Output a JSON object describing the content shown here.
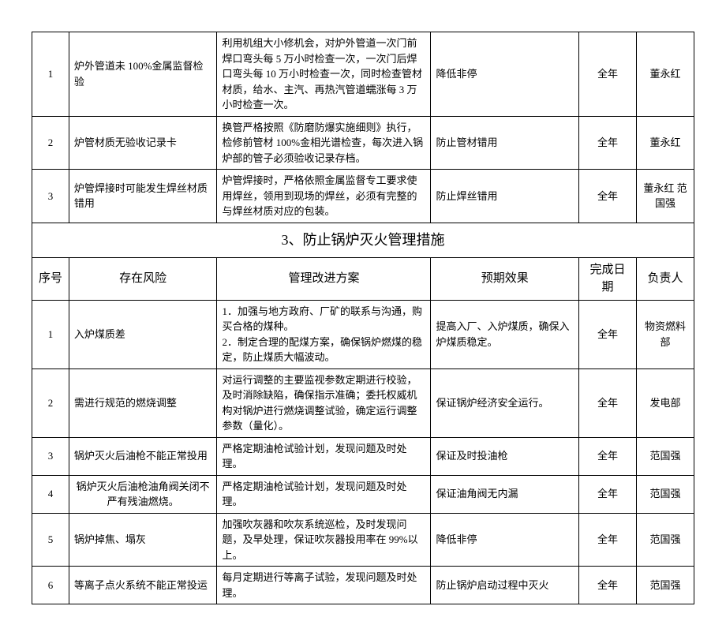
{
  "table1": {
    "rows": [
      {
        "num": "1",
        "risk": "炉外管道未 100%金属监督检验",
        "plan": "利用机组大小修机会，对炉外管道一次门前焊口弯头每 5 万小时检查一次，一次门后焊口弯头每 10 万小时检查一次，同时检查管材材质，给水、主汽、再热汽管道蠕涨每 3 万小时检查一次。",
        "effect": "降低非停",
        "date": "全年",
        "person": "董永红"
      },
      {
        "num": "2",
        "risk": "炉管材质无验收记录卡",
        "plan": "换管严格按照《防磨防爆实施细则》执行，检修前管材 100%金相光谱检查，每次进入锅炉部的管子必须验收记录存档。",
        "effect": "防止管材错用",
        "date": "全年",
        "person": "董永红"
      },
      {
        "num": "3",
        "risk": "炉管焊接时可能发生焊丝材质错用",
        "plan": "炉管焊接时，严格依照金属监督专工要求使用焊丝，领用到现场的焊丝，必须有完整的与焊丝材质对应的包装。",
        "effect": "防止焊丝错用",
        "date": "全年",
        "person": "董永红 范国强"
      }
    ]
  },
  "section_title": "3、防止锅炉灭火管理措施",
  "headers": {
    "num": "序号",
    "risk": "存在风险",
    "plan": "管理改进方案",
    "effect": "预期效果",
    "date": "完成日期",
    "person": "负责人"
  },
  "table2": {
    "rows": [
      {
        "num": "1",
        "risk": "入炉煤质差",
        "plan": "1．加强与地方政府、厂矿的联系与沟通，购买合格的煤种。\n2．制定合理的配煤方案，确保锅炉燃煤的稳定，防止煤质大幅波动。",
        "effect": "提高入厂、入炉煤质，确保入炉煤质稳定。",
        "date": "全年",
        "person": "物资燃料部"
      },
      {
        "num": "2",
        "risk": "需进行规范的燃烧调整",
        "plan": "对运行调整的主要监视参数定期进行校验，及时消除缺陷，确保指示准确；委托权威机构对锅炉进行燃烧调整试验，确定运行调整参数（量化）。",
        "effect": "保证锅炉经济安全运行。",
        "date": "全年",
        "person": "发电部"
      },
      {
        "num": "3",
        "risk": "锅炉灭火后油枪不能正常投用",
        "plan": "严格定期油枪试验计划，发现问题及时处理。",
        "effect": "保证及时投油枪",
        "date": "全年",
        "person": "范国强"
      },
      {
        "num": "4",
        "risk": "锅炉灭火后油枪油角阀关闭不严有残油燃烧。",
        "plan": "严格定期油枪试验计划，发现问题及时处理。",
        "effect": "保证油角阀无内漏",
        "date": "全年",
        "person": "范国强"
      },
      {
        "num": "5",
        "risk": "锅炉掉焦、塌灰",
        "plan": "加强吹灰器和吹灰系统巡检，及时发现问题，及早处理，保证吹灰器投用率在 99%以上。",
        "effect": "降低非停",
        "date": "全年",
        "person": "范国强"
      },
      {
        "num": "6",
        "risk": "等离子点火系统不能正常投运",
        "plan": "每月定期进行等离子试验，发现问题及时处理。",
        "effect": "防止锅炉启动过程中灭火",
        "date": "全年",
        "person": "范国强"
      }
    ]
  }
}
